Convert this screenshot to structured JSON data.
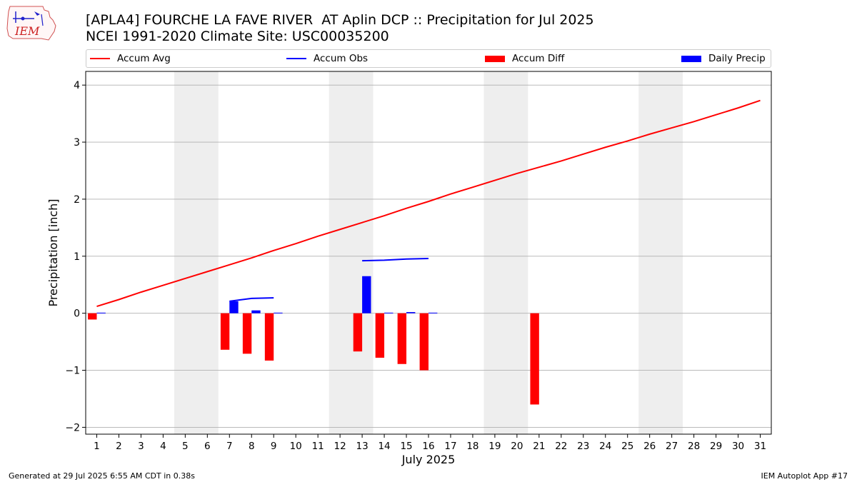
{
  "header": {
    "title_line1": "[APLA4] FOURCHE LA FAVE RIVER  AT Aplin DCP :: Precipitation for Jul 2025",
    "title_line2": "NCEI 1991-2020 Climate Site: USC00035200"
  },
  "logo": {
    "text": "IEM",
    "icon": "iem-logo-icon"
  },
  "footer": {
    "left": "Generated at 29 Jul 2025 6:55 AM CDT in 0.38s",
    "right": "IEM Autoplot App #17"
  },
  "legend": {
    "placement": "top",
    "items": [
      {
        "label": "Accum Avg",
        "kind": "line",
        "color": "#ff0000"
      },
      {
        "label": "Accum Obs",
        "kind": "line",
        "color": "#0000ff"
      },
      {
        "label": "Accum Diff",
        "kind": "bar",
        "color": "#ff0000"
      },
      {
        "label": "Daily Precip",
        "kind": "bar",
        "color": "#0000ff"
      }
    ]
  },
  "chart_data": {
    "type": "bar",
    "xlabel": "July 2025",
    "ylabel": "Precipitation [inch]",
    "xlim": [
      0.5,
      31.5
    ],
    "ylim": [
      -2.12,
      4.24
    ],
    "x": [
      1,
      2,
      3,
      4,
      5,
      6,
      7,
      8,
      9,
      10,
      11,
      12,
      13,
      14,
      15,
      16,
      17,
      18,
      19,
      20,
      21,
      22,
      23,
      24,
      25,
      26,
      27,
      28,
      29,
      30,
      31
    ],
    "x_tick_labels": [
      "1",
      "2",
      "3",
      "4",
      "5",
      "6",
      "7",
      "8",
      "9",
      "10",
      "11",
      "12",
      "13",
      "14",
      "15",
      "16",
      "17",
      "18",
      "19",
      "20",
      "21",
      "22",
      "23",
      "24",
      "25",
      "26",
      "27",
      "28",
      "29",
      "30",
      "31"
    ],
    "y_ticks": [
      -2,
      -1,
      0,
      1,
      2,
      3,
      4
    ],
    "y_tick_labels": [
      "−2",
      "−1",
      "0",
      "1",
      "2",
      "3",
      "4"
    ],
    "grid": "horizontal",
    "weekend_shading": [
      [
        4.5,
        6.5
      ],
      [
        11.5,
        13.5
      ],
      [
        18.5,
        20.5
      ],
      [
        25.5,
        27.5
      ]
    ],
    "colors": {
      "avg": "#ff0000",
      "obs": "#0000ff",
      "diff": "#ff0000",
      "daily": "#0000ff",
      "shade": "#eeeeee",
      "grid": "#b0b0b0"
    },
    "series": [
      {
        "name": "Accum Avg",
        "type": "line",
        "values": [
          0.12,
          0.24,
          0.37,
          0.49,
          0.61,
          0.73,
          0.85,
          0.97,
          1.1,
          1.22,
          1.35,
          1.47,
          1.59,
          1.71,
          1.84,
          1.96,
          2.09,
          2.21,
          2.33,
          2.45,
          2.56,
          2.67,
          2.79,
          2.91,
          3.02,
          3.14,
          3.25,
          3.36,
          3.48,
          3.6,
          3.73
        ]
      },
      {
        "name": "Accum Obs",
        "type": "line",
        "segments": [
          {
            "x": [
              7,
              8,
              9
            ],
            "values": [
              0.21,
              0.26,
              0.27
            ]
          },
          {
            "x": [
              13,
              14,
              15,
              16
            ],
            "values": [
              0.92,
              0.93,
              0.95,
              0.96
            ]
          }
        ]
      },
      {
        "name": "Accum Diff",
        "type": "bar",
        "x": [
          1,
          7,
          8,
          9,
          13,
          14,
          15,
          16,
          21
        ],
        "values": [
          -0.11,
          -0.64,
          -0.71,
          -0.83,
          -0.67,
          -0.78,
          -0.89,
          -1.0,
          -1.6
        ]
      },
      {
        "name": "Daily Precip",
        "type": "bar",
        "x": [
          1,
          7,
          8,
          9,
          13,
          14,
          15,
          16
        ],
        "values": [
          0.01,
          0.21,
          0.05,
          0.01,
          0.65,
          0.01,
          0.02,
          0.01
        ]
      }
    ]
  }
}
